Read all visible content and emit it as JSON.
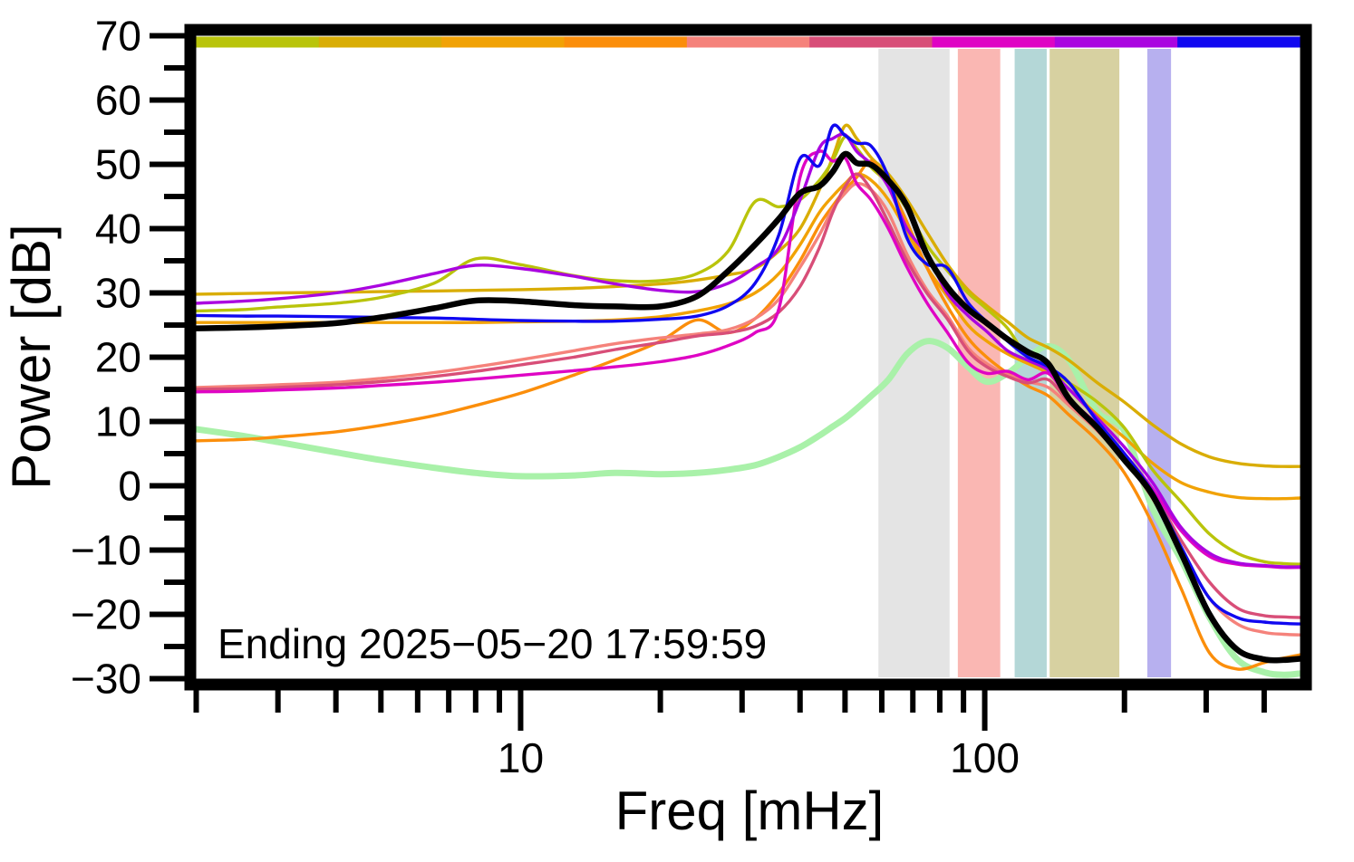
{
  "chart_data": {
    "type": "line",
    "title": "",
    "xlabel": "Freq [mHz]",
    "ylabel": "Power [dB]",
    "annotation": "Ending 2025−05−20 17:59:59",
    "x_scale": "log",
    "xlim": [
      2,
      478
    ],
    "ylim": [
      -30,
      70
    ],
    "grid": false,
    "legend": "none",
    "y_major_ticks": [
      {
        "v": 70,
        "label": "70"
      },
      {
        "v": 60,
        "label": "60"
      },
      {
        "v": 50,
        "label": "50"
      },
      {
        "v": 40,
        "label": "40"
      },
      {
        "v": 30,
        "label": "30"
      },
      {
        "v": 20,
        "label": "20"
      },
      {
        "v": 10,
        "label": "10"
      },
      {
        "v": 0,
        "label": "0"
      },
      {
        "v": -10,
        "label": "−10"
      },
      {
        "v": -20,
        "label": "−20"
      },
      {
        "v": -30,
        "label": "−30"
      }
    ],
    "y_minor_ticks": [
      65,
      55,
      45,
      35,
      25,
      15,
      5,
      -5,
      -15,
      -25
    ],
    "x_major_ticks": [
      {
        "v": 10,
        "label": "10"
      },
      {
        "v": 100,
        "label": "100"
      }
    ],
    "x_minor_ticks": [
      2,
      3,
      4,
      5,
      6,
      7,
      8,
      9,
      20,
      30,
      40,
      50,
      60,
      70,
      80,
      90,
      200,
      300,
      400
    ],
    "shaded_bands": [
      {
        "name": "band-gray",
        "color": "#e4e4e4",
        "x0": 59,
        "x1": 84
      },
      {
        "name": "band-pink",
        "color": "#fab7b3",
        "x0": 87.5,
        "x1": 108
      },
      {
        "name": "band-teal",
        "color": "#b4d7d7",
        "x0": 116,
        "x1": 136
      },
      {
        "name": "band-olive",
        "color": "#d7d1a1",
        "x0": 138,
        "x1": 195
      },
      {
        "name": "band-lavender",
        "color": "#b7b0ef",
        "x0": 224,
        "x1": 252
      }
    ],
    "top_colorbar_segments": [
      {
        "name": "segment-1",
        "color": "#b9c40b"
      },
      {
        "name": "segment-2",
        "color": "#d9ad05"
      },
      {
        "name": "segment-3",
        "color": "#f1a205"
      },
      {
        "name": "segment-4",
        "color": "#fb8e0b"
      },
      {
        "name": "segment-5",
        "color": "#f5827b"
      },
      {
        "name": "segment-6",
        "color": "#d84e78"
      },
      {
        "name": "segment-7",
        "color": "#df04c4"
      },
      {
        "name": "segment-8",
        "color": "#aa05e0"
      },
      {
        "name": "segment-9",
        "color": "#1008f0"
      }
    ],
    "x": [
      2,
      2.5,
      3,
      4,
      5,
      6.5,
      8,
      10,
      13,
      16,
      20,
      24,
      28,
      32,
      36,
      40,
      44,
      47,
      50,
      53,
      57,
      62,
      68,
      75,
      83,
      92,
      101,
      112,
      124,
      137,
      152,
      175,
      200,
      230,
      265,
      305,
      350,
      400,
      440,
      478
    ],
    "series": [
      {
        "name": "green-reference",
        "color": "#a9f1a9",
        "width": 7,
        "values": [
          8.8,
          7.8,
          6.8,
          5.2,
          4.0,
          2.8,
          2.0,
          1.5,
          1.6,
          2.0,
          1.8,
          2.0,
          2.5,
          3.2,
          4.5,
          6.0,
          7.8,
          9.2,
          10.5,
          12.0,
          14.0,
          16.5,
          20.5,
          22.5,
          21.5,
          18.5,
          16.2,
          17.5,
          20.0,
          21.7,
          19.5,
          11.5,
          8.5,
          -3.5,
          -11.5,
          -20.5,
          -27.0,
          -29.0,
          -29.4,
          -29.2
        ]
      },
      {
        "name": "amber",
        "color": "#f1a205",
        "width": 3.4,
        "values": [
          25.4,
          25.4,
          25.4,
          25.4,
          25.4,
          25.4,
          25.4,
          25.5,
          25.6,
          25.8,
          26.3,
          27.2,
          28.3,
          30.0,
          33.0,
          37.5,
          42.5,
          45.0,
          47.0,
          48.5,
          47.5,
          44.5,
          39.5,
          34.0,
          29.5,
          25.0,
          22.5,
          20.5,
          19.0,
          17.5,
          15.0,
          11.0,
          7.5,
          3.5,
          0.5,
          -1.0,
          -1.8,
          -2.0,
          -2.0,
          -1.9
        ]
      },
      {
        "name": "gold",
        "color": "#d9ad05",
        "width": 3.4,
        "values": [
          29.8,
          29.9,
          30.0,
          30.1,
          30.2,
          30.3,
          30.4,
          30.5,
          30.7,
          31.0,
          31.4,
          32.0,
          32.8,
          33.8,
          36.5,
          40.0,
          46.0,
          51.0,
          56.0,
          54.0,
          51.0,
          48.5,
          44.5,
          39.5,
          34.5,
          30.5,
          28.0,
          25.5,
          23.0,
          21.5,
          19.5,
          16.0,
          13.0,
          9.5,
          6.5,
          4.5,
          3.5,
          3.1,
          3.0,
          3.0
        ]
      },
      {
        "name": "yellow-green",
        "color": "#b9c40b",
        "width": 3.4,
        "values": [
          27.2,
          27.4,
          27.8,
          28.4,
          29.3,
          31.5,
          35.3,
          34.4,
          32.7,
          31.9,
          31.9,
          33.0,
          36.5,
          44.2,
          43.4,
          44.5,
          47.5,
          50.5,
          54.3,
          52.5,
          49.5,
          47.0,
          43.0,
          37.5,
          33.5,
          30.0,
          27.5,
          24.5,
          19.8,
          18.0,
          16.0,
          13.0,
          9.0,
          2.5,
          -2.5,
          -7.5,
          -10.5,
          -11.8,
          -12.1,
          -12.2
        ]
      },
      {
        "name": "orange",
        "color": "#fb8e0b",
        "width": 3.4,
        "values": [
          7.0,
          7.2,
          7.6,
          8.4,
          9.4,
          10.9,
          12.5,
          14.4,
          17.2,
          19.6,
          22.5,
          25.8,
          23.8,
          26.0,
          30.0,
          35.0,
          40.5,
          43.5,
          46.0,
          48.0,
          50.5,
          47.0,
          41.0,
          34.0,
          28.0,
          23.0,
          20.0,
          17.5,
          15.5,
          14.0,
          11.0,
          7.0,
          2.0,
          -6.0,
          -16.0,
          -26.0,
          -28.5,
          -27.5,
          -26.8,
          -26.3
        ]
      },
      {
        "name": "salmon",
        "color": "#f5827b",
        "width": 3.4,
        "values": [
          15.3,
          15.5,
          15.7,
          16.1,
          16.7,
          17.6,
          18.5,
          19.6,
          21.0,
          22.1,
          23.0,
          23.6,
          24.3,
          26.0,
          29.0,
          34.0,
          39.0,
          43.0,
          45.5,
          47.0,
          46.0,
          42.5,
          36.0,
          30.5,
          26.5,
          21.5,
          19.0,
          17.3,
          16.2,
          15.3,
          12.5,
          8.5,
          4.0,
          -2.0,
          -10.0,
          -17.5,
          -21.5,
          -22.8,
          -23.1,
          -23.2
        ]
      },
      {
        "name": "rose",
        "color": "#d84e78",
        "width": 3.4,
        "values": [
          15.0,
          15.1,
          15.3,
          15.7,
          16.2,
          17.0,
          17.8,
          18.8,
          20.0,
          21.2,
          22.3,
          23.3,
          23.8,
          24.8,
          27.0,
          31.0,
          37.0,
          42.5,
          46.5,
          48.5,
          46.0,
          41.0,
          35.0,
          30.0,
          26.0,
          21.0,
          18.5,
          17.0,
          16.0,
          16.5,
          13.0,
          9.0,
          4.5,
          -1.0,
          -8.5,
          -15.0,
          -19.0,
          -20.2,
          -20.4,
          -20.5
        ]
      },
      {
        "name": "magenta",
        "color": "#df04c4",
        "width": 3.4,
        "values": [
          14.6,
          14.7,
          14.9,
          15.2,
          15.6,
          16.1,
          16.6,
          17.2,
          17.9,
          18.5,
          19.3,
          20.3,
          21.8,
          23.8,
          27.5,
          48.0,
          52.0,
          50.5,
          51.0,
          47.0,
          44.4,
          40.0,
          34.0,
          28.5,
          23.9,
          19.2,
          17.5,
          17.8,
          16.5,
          17.5,
          13.5,
          9.5,
          5.0,
          -0.5,
          -7.0,
          -11.0,
          -12.2,
          -12.5,
          -12.7,
          -12.7
        ]
      },
      {
        "name": "purple",
        "color": "#aa05e0",
        "width": 3.4,
        "values": [
          28.4,
          28.7,
          29.1,
          30.0,
          31.2,
          33.0,
          34.3,
          33.8,
          32.6,
          31.4,
          30.4,
          30.2,
          31.5,
          34.0,
          37.0,
          44.5,
          52.5,
          54.0,
          54.6,
          52.0,
          50.0,
          46.5,
          40.0,
          36.0,
          30.0,
          26.5,
          24.0,
          21.0,
          19.5,
          18.0,
          15.0,
          10.5,
          6.0,
          0.5,
          -6.5,
          -10.5,
          -12.0,
          -12.4,
          -12.6,
          -12.6
        ]
      },
      {
        "name": "blue",
        "color": "#1008f0",
        "width": 3.4,
        "values": [
          26.5,
          26.4,
          26.4,
          26.3,
          26.2,
          26.1,
          25.9,
          25.7,
          25.6,
          25.6,
          25.9,
          26.4,
          28.0,
          31.5,
          39.0,
          50.9,
          49.8,
          55.9,
          54.5,
          53.3,
          52.8,
          48.0,
          38.5,
          34.5,
          33.9,
          28.5,
          25.5,
          22.5,
          20.0,
          18.5,
          16.0,
          10.0,
          5.0,
          -1.0,
          -9.5,
          -17.5,
          -20.5,
          -21.2,
          -21.4,
          -21.5
        ]
      },
      {
        "name": "mean-black",
        "color": "#000000",
        "width": 6.5,
        "values": [
          24.5,
          24.6,
          24.8,
          25.3,
          26.2,
          27.6,
          28.8,
          28.7,
          28.1,
          27.9,
          27.9,
          29.5,
          33.4,
          37.5,
          41.5,
          45.5,
          46.6,
          48.8,
          51.6,
          50.2,
          49.9,
          47.5,
          43.5,
          36.0,
          31.0,
          27.5,
          25.3,
          22.8,
          20.8,
          19.0,
          13.5,
          9.0,
          4.0,
          -1.5,
          -10.5,
          -20.0,
          -25.5,
          -27.0,
          -27.1,
          -26.9
        ]
      }
    ]
  }
}
